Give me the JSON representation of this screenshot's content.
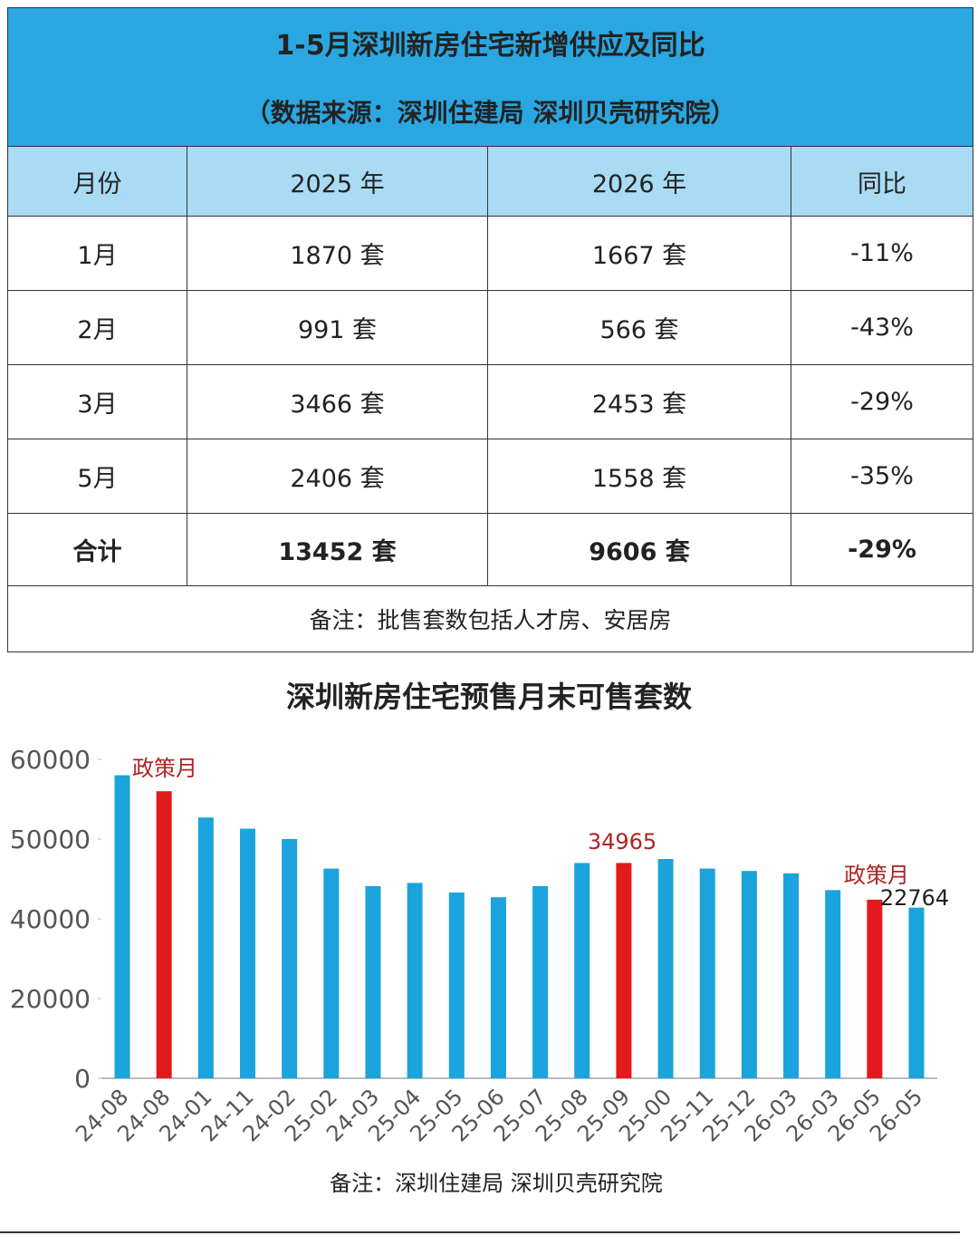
{
  "table": {
    "title": "1-5月深圳新房住宅新增供应及同比",
    "subtitle": "（数据来源：深圳住建局  深圳贝壳研究院）",
    "header": [
      "月份",
      "2025 年",
      "2026 年",
      "同比"
    ],
    "rows": [
      [
        "1月",
        "1870 套",
        "1667 套",
        "-11%"
      ],
      [
        "2月",
        "991 套",
        "566 套",
        "-43%"
      ],
      [
        "3月",
        "3466 套",
        "2453 套",
        "-29%"
      ],
      [
        "5月",
        "2406 套",
        "1558 套",
        "-35%"
      ]
    ],
    "total": [
      "合计",
      "13452 套",
      "9606 套",
      "-29%"
    ],
    "note": "备注：批售套数包括人才房、安居房"
  },
  "chart_data": {
    "type": "bar",
    "title": "深圳新房住宅预售月末可售套数",
    "categories": [
      "24-08",
      "24-08",
      "24-01",
      "24-11",
      "24-02",
      "25-02",
      "24-03",
      "25-04",
      "25-05",
      "25-06",
      "25-07",
      "25-08",
      "25-09",
      "25-00",
      "25-11",
      "25-12",
      "26-03",
      "26-03",
      "26-05",
      "26-05"
    ],
    "values": [
      58000,
      56000,
      52700,
      51300,
      50000,
      46300,
      44100,
      44500,
      43300,
      42700,
      44100,
      47000,
      47000,
      47500,
      46300,
      46000,
      45700,
      43600,
      42400,
      41400
    ],
    "colors": [
      "#1aa3dc",
      "#e31a1c",
      "#1aa3dc",
      "#1aa3dc",
      "#1aa3dc",
      "#1aa3dc",
      "#1aa3dc",
      "#1aa3dc",
      "#1aa3dc",
      "#1aa3dc",
      "#1aa3dc",
      "#1aa3dc",
      "#e31a1c",
      "#1aa3dc",
      "#1aa3dc",
      "#1aa3dc",
      "#1aa3dc",
      "#1aa3dc",
      "#e31a1c",
      "#1aa3dc"
    ],
    "ylim": [
      0,
      60000
    ],
    "yticks": [
      0,
      20000,
      40000,
      50000,
      60000
    ],
    "annotations": [
      {
        "text": "政策月",
        "color": "#b22222"
      },
      {
        "text": "34965",
        "color": "#b22222"
      },
      {
        "text": "政策月",
        "color": "#b22222"
      },
      {
        "text": "22764",
        "color": "#222222"
      }
    ],
    "note": "备注：深圳住建局  深圳贝壳研究院"
  }
}
